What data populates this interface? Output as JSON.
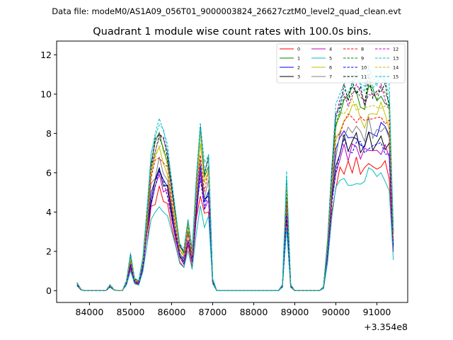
{
  "chart_data": {
    "type": "line",
    "suptitle": "Data file: modeM0/AS1A09_056T01_9000003824_26627cztM0_level2_quad_clean.evt",
    "title": "Quadrant 1 module wise count rates with 100.0s bins.",
    "xlabel": "",
    "ylabel": "",
    "x_offset_label": "+3.354e8",
    "xlim": [
      83200,
      91750
    ],
    "ylim": [
      -0.6,
      12.7
    ],
    "x_ticks": [
      84000,
      85000,
      86000,
      87000,
      88000,
      89000,
      90000,
      91000
    ],
    "y_ticks": [
      0,
      2,
      4,
      6,
      8,
      10,
      12
    ],
    "grid": false,
    "legend_position": "top-right",
    "series": [
      {
        "name": "0",
        "color": "#ff0000",
        "style": "solid",
        "scale": 0.62
      },
      {
        "name": "1",
        "color": "#008000",
        "style": "solid",
        "scale": 0.97
      },
      {
        "name": "2",
        "color": "#0000ff",
        "style": "solid",
        "scale": 0.78
      },
      {
        "name": "3",
        "color": "#000000",
        "style": "solid",
        "scale": 0.74
      },
      {
        "name": "4",
        "color": "#bf00bf",
        "style": "solid",
        "scale": 0.7
      },
      {
        "name": "5",
        "color": "#00bfbf",
        "style": "solid",
        "scale": 0.56
      },
      {
        "name": "6",
        "color": "#bfbf00",
        "style": "solid",
        "scale": 0.88
      },
      {
        "name": "7",
        "color": "#808080",
        "style": "solid",
        "scale": 0.8
      },
      {
        "name": "8",
        "color": "#ff0000",
        "style": "dashed",
        "scale": 0.86
      },
      {
        "name": "9",
        "color": "#008000",
        "style": "dashed",
        "scale": 0.95
      },
      {
        "name": "10",
        "color": "#0000ff",
        "style": "dashed",
        "scale": 0.72
      },
      {
        "name": "11",
        "color": "#000000",
        "style": "dashed",
        "scale": 1.0
      },
      {
        "name": "12",
        "color": "#bf00bf",
        "style": "dashed",
        "scale": 0.98
      },
      {
        "name": "13",
        "color": "#00bfbf",
        "style": "dashed",
        "scale": 1.03
      },
      {
        "name": "14",
        "color": "#bfbf00",
        "style": "dashed",
        "scale": 0.92
      },
      {
        "name": "15",
        "color": "#00bfbf",
        "style": "dashed",
        "scale": 1.05
      }
    ],
    "base_profile": {
      "x": [
        83700,
        83800,
        83900,
        84000,
        84100,
        84200,
        84300,
        84400,
        84500,
        84600,
        84700,
        84800,
        84900,
        85000,
        85100,
        85200,
        85300,
        85400,
        85500,
        85600,
        85700,
        85800,
        85900,
        86000,
        86100,
        86200,
        86300,
        86400,
        86500,
        86600,
        86700,
        86800,
        86900,
        87000,
        87100,
        87200,
        87300,
        87400,
        87500,
        87600,
        87700,
        87800,
        87900,
        88000,
        88100,
        88200,
        88300,
        88400,
        88500,
        88600,
        88700,
        88800,
        88900,
        89000,
        89100,
        89200,
        89300,
        89400,
        89500,
        89600,
        89700,
        89800,
        89900,
        90000,
        90100,
        90200,
        90300,
        90400,
        90500,
        90600,
        90700,
        90800,
        90900,
        91000,
        91100,
        91200,
        91300,
        91400
      ],
      "y": [
        0.4,
        0.05,
        0.0,
        0.0,
        0.0,
        0.0,
        0.0,
        0.0,
        0.3,
        0.05,
        0.0,
        0.0,
        0.5,
        1.8,
        0.6,
        0.5,
        1.6,
        4.0,
        6.5,
        7.5,
        8.2,
        7.6,
        7.0,
        5.3,
        3.8,
        2.3,
        2.0,
        3.6,
        2.0,
        5.5,
        8.3,
        6.0,
        6.8,
        0.6,
        0.0,
        0.0,
        0.0,
        0.0,
        0.0,
        0.0,
        0.0,
        0.0,
        0.0,
        0.0,
        0.0,
        0.0,
        0.0,
        0.0,
        0.0,
        0.0,
        0.3,
        5.6,
        0.3,
        0.0,
        0.0,
        0.0,
        0.0,
        0.0,
        0.0,
        0.0,
        0.2,
        2.5,
        6.2,
        8.8,
        9.6,
        10.2,
        10.0,
        10.3,
        10.4,
        10.0,
        9.8,
        10.6,
        10.2,
        9.8,
        10.5,
        10.2,
        9.7,
        3.0
      ]
    }
  }
}
